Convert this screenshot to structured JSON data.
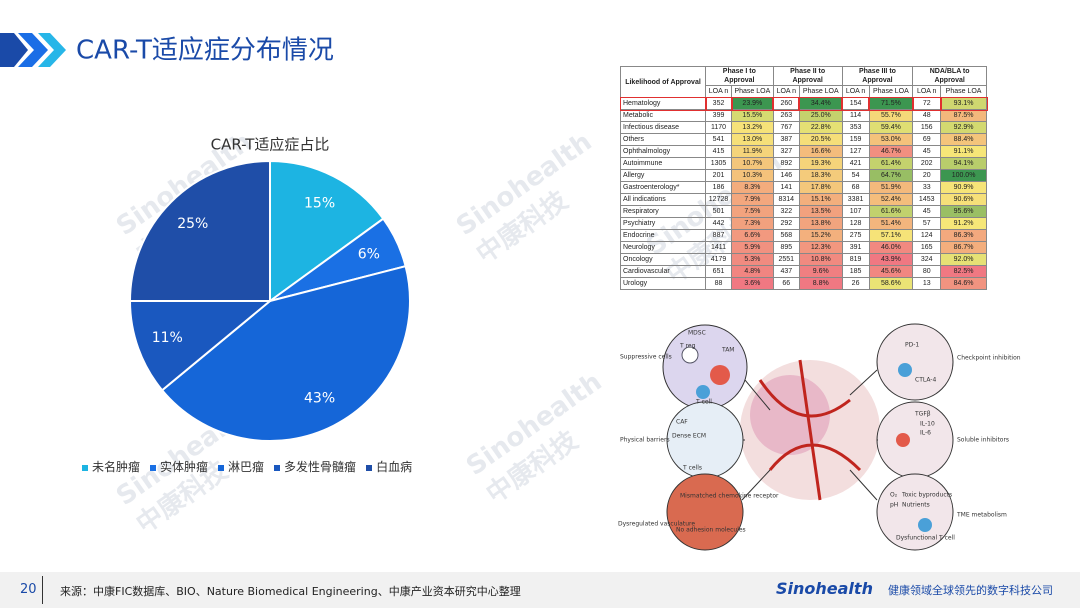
{
  "header": {
    "title": "CAR-T适应症分布情况"
  },
  "chart_data": {
    "type": "pie",
    "title": "CAR-T适应症占比",
    "categories": [
      "未名肿瘤",
      "实体肿瘤",
      "淋巴瘤",
      "多发性骨髓瘤",
      "白血病"
    ],
    "values": [
      15,
      6,
      43,
      11,
      25
    ],
    "value_labels": [
      "15%",
      "6%",
      "43%",
      "11%",
      "25%"
    ],
    "colors": [
      "#1db4e2",
      "#1a70e4",
      "#1566d8",
      "#1a58bf",
      "#1f4ea8"
    ],
    "legend": "bottom"
  },
  "table": {
    "corner": "Likelihood of Approval",
    "groups": [
      "Phase I to Approval",
      "Phase II to Approval",
      "Phase III to Approval",
      "NDA/BLA to Approval"
    ],
    "subheaders": [
      "LOA n",
      "Phase LOA"
    ],
    "highlight_row": 0,
    "rows": [
      [
        "Hematology",
        "352",
        "23.9%",
        "260",
        "34.4%",
        "154",
        "71.5%",
        "72",
        "93.1%"
      ],
      [
        "Metabolic",
        "399",
        "15.5%",
        "263",
        "25.0%",
        "114",
        "55.7%",
        "48",
        "87.5%"
      ],
      [
        "Infectious disease",
        "1170",
        "13.2%",
        "767",
        "22.8%",
        "353",
        "59.4%",
        "156",
        "92.9%"
      ],
      [
        "Others",
        "541",
        "13.0%",
        "387",
        "20.5%",
        "159",
        "53.0%",
        "69",
        "88.4%"
      ],
      [
        "Ophthalmology",
        "415",
        "11.9%",
        "327",
        "16.6%",
        "127",
        "46.7%",
        "45",
        "91.1%"
      ],
      [
        "Autoimmune",
        "1305",
        "10.7%",
        "892",
        "19.3%",
        "421",
        "61.4%",
        "202",
        "94.1%"
      ],
      [
        "Allergy",
        "201",
        "10.3%",
        "146",
        "18.3%",
        "54",
        "64.7%",
        "20",
        "100.0%"
      ],
      [
        "Gastroenterology*",
        "186",
        "8.3%",
        "141",
        "17.8%",
        "68",
        "51.9%",
        "33",
        "90.9%"
      ],
      [
        "All indications",
        "12728",
        "7.9%",
        "8314",
        "15.1%",
        "3381",
        "52.4%",
        "1453",
        "90.6%"
      ],
      [
        "Respiratory",
        "501",
        "7.5%",
        "322",
        "13.5%",
        "107",
        "61.6%",
        "45",
        "95.6%"
      ],
      [
        "Psychiatry",
        "442",
        "7.3%",
        "292",
        "13.8%",
        "128",
        "51.4%",
        "57",
        "91.2%"
      ],
      [
        "Endocrine",
        "887",
        "6.6%",
        "568",
        "15.2%",
        "275",
        "57.1%",
        "124",
        "86.3%"
      ],
      [
        "Neurology",
        "1411",
        "5.9%",
        "895",
        "12.3%",
        "391",
        "46.0%",
        "165",
        "86.7%"
      ],
      [
        "Oncology",
        "4179",
        "5.3%",
        "2551",
        "10.8%",
        "819",
        "43.9%",
        "324",
        "92.0%"
      ],
      [
        "Cardiovascular",
        "651",
        "4.8%",
        "437",
        "9.6%",
        "185",
        "45.6%",
        "80",
        "82.5%"
      ],
      [
        "Urology",
        "88",
        "3.6%",
        "66",
        "8.8%",
        "26",
        "58.6%",
        "13",
        "84.6%"
      ]
    ]
  },
  "diagram": {
    "labels": [
      "Suppressive cells",
      "MDSC",
      "TAM",
      "T reg",
      "T cell",
      "Checkpoint inhibition",
      "PD-1",
      "CTLA-4",
      "Physical barriers",
      "CAF",
      "Dense ECM",
      "T cells",
      "Soluble inhibitors",
      "TGFβ",
      "IL-10",
      "IL-6",
      "Dysregulated vasculature",
      "Mismatched chemokine receptor",
      "No adhesion molecules",
      "TME metabolism",
      "O₂",
      "Toxic byproducts",
      "pH",
      "Nutrients",
      "Dysfunctional T cell"
    ]
  },
  "watermark": [
    "Sinohealth",
    "中康科技"
  ],
  "footer": {
    "page": "20",
    "source": "来源：中康FIC数据库、BIO、Nature Biomedical Engineering、中康产业资本研究中心整理",
    "brand": "Sinohealth",
    "slogan": "健康领域全球领先的数字科技公司"
  }
}
